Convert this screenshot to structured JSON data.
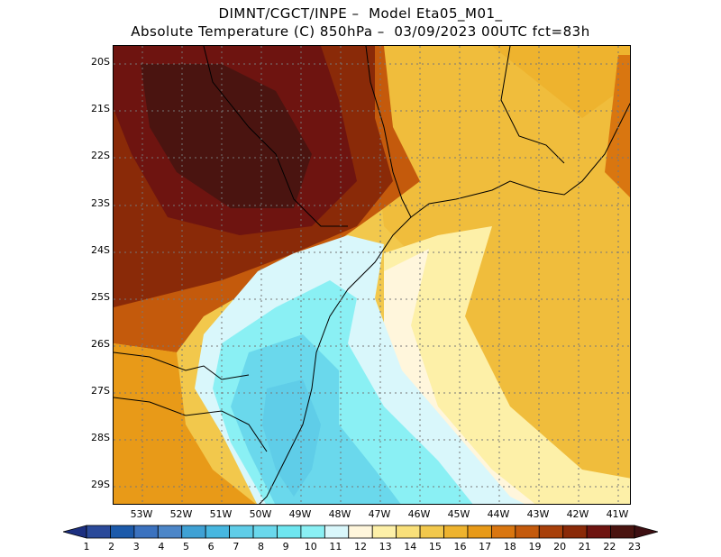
{
  "title": {
    "line1": "DIMNT/CGCT/INPE –  Model Eta05_M01_",
    "line2": "Absolute Temperature (C) 850hPa –  03/09/2023 00UTC fct=83h"
  },
  "map": {
    "lat_labels": [
      "20S",
      "21S",
      "22S",
      "23S",
      "24S",
      "25S",
      "26S",
      "27S",
      "28S",
      "29S"
    ],
    "lon_labels": [
      "53W",
      "52W",
      "51W",
      "50W",
      "49W",
      "48W",
      "47W",
      "46W",
      "45W",
      "44W",
      "43W",
      "42W",
      "41W"
    ],
    "background_color": "#f2cf55"
  },
  "colorbar": {
    "labels": [
      "1",
      "2",
      "3",
      "4",
      "5",
      "6",
      "7",
      "8",
      "9",
      "10",
      "11",
      "12",
      "13",
      "14",
      "15",
      "16",
      "17",
      "18",
      "19",
      "20",
      "21",
      "22",
      "23"
    ],
    "colors": [
      "#2b4a9a",
      "#1c5aaa",
      "#3b72bf",
      "#4c86c8",
      "#3fa1d4",
      "#47b7e0",
      "#5fcde8",
      "#6ad8ec",
      "#6ee6f0",
      "#8af0f4",
      "#d9f7fb",
      "#fff6dc",
      "#fdf0a8",
      "#f9e07a",
      "#f2c84c",
      "#eeb32e",
      "#e89a18",
      "#d97610",
      "#c45a0c",
      "#a8400a",
      "#8a2a08",
      "#6e1410",
      "#4a1410"
    ],
    "under_color": "#1c2f80",
    "over_color": "#3e0f12"
  }
}
